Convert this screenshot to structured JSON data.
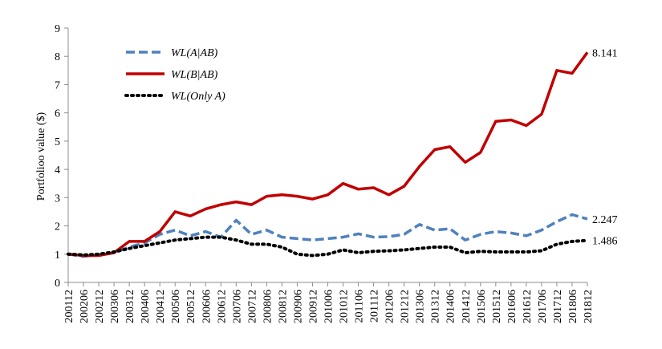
{
  "chart_data": {
    "type": "line",
    "title": "",
    "xlabel": "",
    "ylabel": "Portfolioo value ($)",
    "ylim": [
      0,
      9
    ],
    "yticks": [
      0,
      1,
      2,
      3,
      4,
      5,
      6,
      7,
      8,
      9
    ],
    "grid": false,
    "legend_position": "top-left",
    "x_start": "200112",
    "x_end": "201812",
    "x_tick_labels": [
      "200112",
      "200206",
      "200212",
      "200306",
      "200312",
      "200406",
      "200412",
      "200506",
      "200512",
      "200606",
      "200612",
      "200706",
      "200712",
      "200806",
      "200812",
      "200906",
      "200912",
      "201006",
      "201012",
      "201106",
      "201112",
      "201206",
      "201212",
      "201306",
      "201312",
      "201406",
      "201412",
      "201506",
      "201512",
      "201606",
      "201612",
      "201706",
      "201712",
      "201806",
      "201812"
    ],
    "x_sampled": [
      "200112",
      "200206",
      "200212",
      "200306",
      "200312",
      "200406",
      "200412",
      "200506",
      "200512",
      "200606",
      "200612",
      "200706",
      "200712",
      "200806",
      "200812",
      "200906",
      "200912",
      "201006",
      "201012",
      "201106",
      "201112",
      "201206",
      "201212",
      "201306",
      "201312",
      "201406",
      "201412",
      "201506",
      "201512",
      "201606",
      "201612",
      "201706",
      "201712",
      "201806",
      "201812"
    ],
    "series": [
      {
        "name": "WL(A|AB)",
        "color": "#4f81bd",
        "style": "dashed",
        "values": [
          1.0,
          0.92,
          0.98,
          1.05,
          1.25,
          1.4,
          1.7,
          1.85,
          1.65,
          1.8,
          1.6,
          2.2,
          1.7,
          1.85,
          1.6,
          1.55,
          1.5,
          1.55,
          1.6,
          1.72,
          1.6,
          1.62,
          1.7,
          2.05,
          1.85,
          1.9,
          1.5,
          1.7,
          1.8,
          1.75,
          1.65,
          1.85,
          2.15,
          2.4,
          2.247
        ],
        "end_label": "2.247"
      },
      {
        "name": "WL(B|AB)",
        "color": "#c00000",
        "style": "solid",
        "values": [
          1.0,
          0.95,
          0.95,
          1.05,
          1.45,
          1.45,
          1.8,
          2.5,
          2.35,
          2.6,
          2.75,
          2.85,
          2.75,
          3.05,
          3.1,
          3.05,
          2.95,
          3.1,
          3.5,
          3.3,
          3.35,
          3.1,
          3.4,
          4.1,
          4.7,
          4.8,
          4.25,
          4.6,
          5.7,
          5.75,
          5.55,
          5.95,
          7.5,
          7.4,
          8.141
        ],
        "end_label": "8.141"
      },
      {
        "name": "WL(Only A)",
        "color": "#000000",
        "style": "dotted",
        "values": [
          1.0,
          0.97,
          1.0,
          1.08,
          1.2,
          1.3,
          1.4,
          1.5,
          1.55,
          1.6,
          1.6,
          1.5,
          1.35,
          1.35,
          1.25,
          1.0,
          0.95,
          1.0,
          1.15,
          1.05,
          1.1,
          1.12,
          1.15,
          1.2,
          1.25,
          1.25,
          1.05,
          1.1,
          1.08,
          1.08,
          1.08,
          1.12,
          1.35,
          1.45,
          1.486
        ],
        "end_label": "1.486"
      }
    ]
  }
}
